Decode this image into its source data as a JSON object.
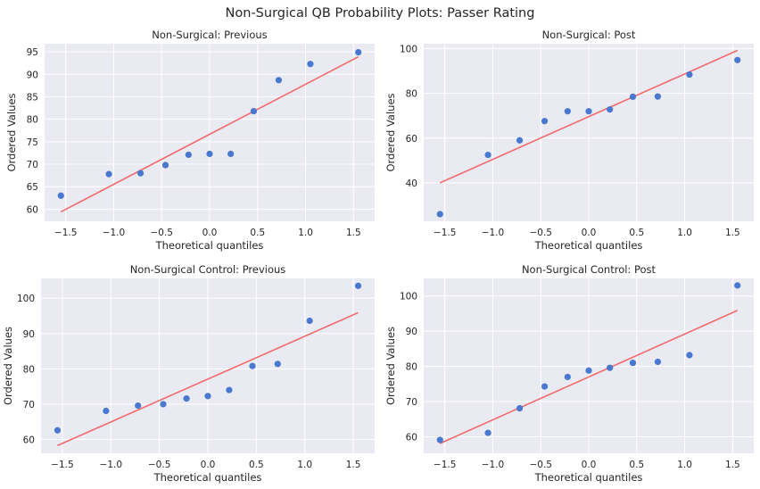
{
  "figure": {
    "suptitle": "Non-Surgical QB Probability Plots: Passer Rating",
    "colors": {
      "background": "#eaeaf2",
      "grid": "#ffffff",
      "points": "#4878cf",
      "fit_line": "#f26b6b"
    }
  },
  "chart_data": [
    {
      "type": "scatter",
      "title": "Non-Surgical: Previous",
      "xlabel": "Theoretical quantiles",
      "ylabel": "Ordered Values",
      "xlim": [
        -1.72,
        1.72
      ],
      "ylim": [
        57.3,
        96.8
      ],
      "xticks": [
        -1.5,
        -1.0,
        -0.5,
        0.0,
        0.5,
        1.0,
        1.5
      ],
      "xtick_labels": [
        "−1.5",
        "−1.0",
        "−0.5",
        "0.0",
        "0.5",
        "1.0",
        "1.5"
      ],
      "yticks": [
        60,
        65,
        70,
        75,
        80,
        85,
        90,
        95
      ],
      "ytick_labels": [
        "60",
        "65",
        "70",
        "75",
        "80",
        "85",
        "90",
        "95"
      ],
      "x": [
        -1.55,
        -1.05,
        -0.72,
        -0.46,
        -0.22,
        0.0,
        0.22,
        0.46,
        0.72,
        1.05,
        1.55
      ],
      "y": [
        63.0,
        67.8,
        68.0,
        69.8,
        72.1,
        72.3,
        72.3,
        81.8,
        88.7,
        92.3,
        94.9
      ],
      "fit_line": {
        "x": [
          -1.55,
          1.55
        ],
        "y": [
          59.4,
          93.9
        ]
      }
    },
    {
      "type": "scatter",
      "title": "Non-Surgical: Post",
      "xlabel": "Theoretical quantiles",
      "ylabel": "Ordered Values",
      "xlim": [
        -1.72,
        1.72
      ],
      "ylim": [
        22.8,
        102.2
      ],
      "xticks": [
        -1.5,
        -1.0,
        -0.5,
        0.0,
        0.5,
        1.0,
        1.5
      ],
      "xtick_labels": [
        "−1.5",
        "−1.0",
        "−0.5",
        "0.0",
        "0.5",
        "1.0",
        "1.5"
      ],
      "yticks": [
        40,
        60,
        80,
        100
      ],
      "ytick_labels": [
        "40",
        "60",
        "80",
        "100"
      ],
      "x": [
        -1.55,
        -1.05,
        -0.72,
        -0.46,
        -0.22,
        0.0,
        0.22,
        0.46,
        0.72,
        1.05,
        1.55
      ],
      "y": [
        26.0,
        52.5,
        59.0,
        67.6,
        72.0,
        72.0,
        72.8,
        78.5,
        78.6,
        88.4,
        94.9
      ],
      "fit_line": {
        "x": [
          -1.55,
          1.55
        ],
        "y": [
          40.0,
          99.2
        ]
      }
    },
    {
      "type": "scatter",
      "title": "Non-Surgical Control: Previous",
      "xlabel": "Theoretical quantiles",
      "ylabel": "Ordered Values",
      "xlim": [
        -1.72,
        1.72
      ],
      "ylim": [
        56.1,
        105.6
      ],
      "xticks": [
        -1.5,
        -1.0,
        -0.5,
        0.0,
        0.5,
        1.0,
        1.5
      ],
      "xtick_labels": [
        "−1.5",
        "−1.0",
        "−0.5",
        "0.0",
        "0.5",
        "1.0",
        "1.5"
      ],
      "yticks": [
        60,
        70,
        80,
        90,
        100
      ],
      "ytick_labels": [
        "60",
        "70",
        "80",
        "90",
        "100"
      ],
      "x": [
        -1.55,
        -1.05,
        -0.72,
        -0.46,
        -0.22,
        0.0,
        0.22,
        0.46,
        0.72,
        1.05,
        1.55
      ],
      "y": [
        62.6,
        68.1,
        69.6,
        70.0,
        71.6,
        72.3,
        74.0,
        80.8,
        81.4,
        93.6,
        103.5
      ],
      "fit_line": {
        "x": [
          -1.55,
          1.55
        ],
        "y": [
          58.3,
          95.9
        ]
      }
    },
    {
      "type": "scatter",
      "title": "Non-Surgical Control: Post",
      "xlabel": "Theoretical quantiles",
      "ylabel": "Ordered Values",
      "xlim": [
        -1.72,
        1.72
      ],
      "ylim": [
        55.3,
        105.0
      ],
      "xticks": [
        -1.5,
        -1.0,
        -0.5,
        0.0,
        0.5,
        1.0,
        1.5
      ],
      "xtick_labels": [
        "−1.5",
        "−1.0",
        "−0.5",
        "0.0",
        "0.5",
        "1.0",
        "1.5"
      ],
      "yticks": [
        60,
        70,
        80,
        90,
        100
      ],
      "ytick_labels": [
        "60",
        "70",
        "80",
        "90",
        "100"
      ],
      "x": [
        -1.55,
        -1.05,
        -0.72,
        -0.46,
        -0.22,
        0.0,
        0.22,
        0.46,
        0.72,
        1.05,
        1.55
      ],
      "y": [
        59.1,
        61.1,
        68.1,
        74.3,
        77.0,
        78.8,
        79.6,
        81.0,
        81.3,
        83.2,
        103.0
      ],
      "fit_line": {
        "x": [
          -1.55,
          1.55
        ],
        "y": [
          58.1,
          95.9
        ]
      }
    }
  ]
}
